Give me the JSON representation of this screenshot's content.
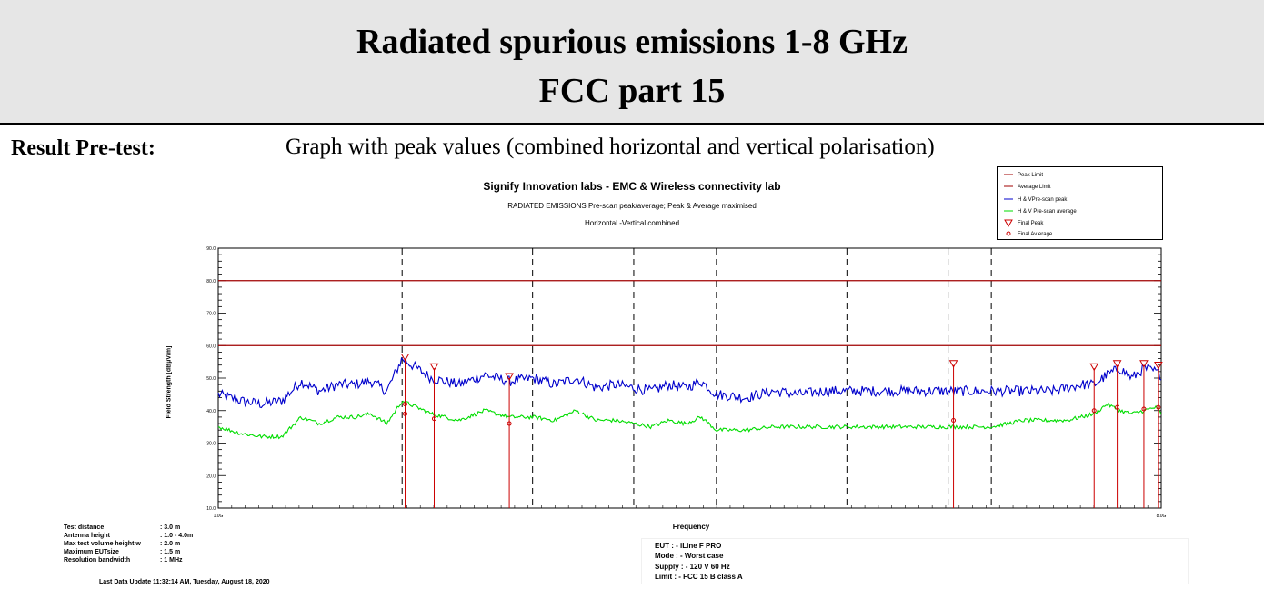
{
  "header": {
    "title_line1": "Radiated spurious emissions 1-8 GHz",
    "title_line2": "FCC part 15",
    "background": "#e6e6e6"
  },
  "result": {
    "label": "Result Pre-test:",
    "description": "Graph with peak values (combined horizontal and vertical polarisation)"
  },
  "chart_data": {
    "type": "line",
    "title": "Signify Innovation labs - EMC & Wireless connectivity lab",
    "subtitle": "RADIATED EMISSIONS Pre-scan peak/average; Peak & Average maximised",
    "subtitle2": "Horizontal -Vertical combined",
    "xlabel": "Frequency",
    "ylabel": "Field Strength [dBµV/m]",
    "x_scale": "log",
    "xlim_ghz": [
      1.0,
      8.0
    ],
    "x_tick_labels": [
      "1.0G",
      "8.0G"
    ],
    "ylim": [
      10,
      90
    ],
    "y_tick_labels": [
      "10.0",
      "20.0",
      "30.0",
      "40.0",
      "50.0",
      "60.0",
      "70.0",
      "80.0",
      "90.0"
    ],
    "dashed_gridlines_ghz": [
      1.5,
      2.0,
      2.5,
      3.0,
      4.0,
      5.0,
      5.5
    ],
    "limits": [
      {
        "name": "Peak Limit",
        "value": 80,
        "color": "#a00000"
      },
      {
        "name": "Average Limit",
        "value": 60,
        "color": "#a00000"
      }
    ],
    "series": [
      {
        "name": "H & V Pre-scan peak",
        "color": "#0000cc",
        "x_ghz": [
          1.0,
          1.05,
          1.1,
          1.15,
          1.2,
          1.25,
          1.3,
          1.35,
          1.4,
          1.45,
          1.5,
          1.55,
          1.6,
          1.7,
          1.8,
          1.9,
          2.0,
          2.1,
          2.2,
          2.3,
          2.4,
          2.5,
          2.6,
          2.7,
          2.8,
          2.9,
          3.0,
          3.2,
          3.4,
          3.6,
          3.8,
          4.0,
          4.3,
          4.6,
          4.9,
          5.2,
          5.5,
          5.7,
          5.9,
          6.1,
          6.3,
          6.5,
          6.7,
          6.9,
          7.1,
          7.3,
          7.5,
          7.7,
          7.9,
          8.0
        ],
        "y": [
          45,
          43,
          42,
          43,
          49,
          46,
          48,
          48,
          49,
          46,
          56,
          53,
          50,
          48,
          51,
          49,
          50,
          48,
          50,
          47,
          48,
          47,
          46,
          48,
          47,
          49,
          45,
          44,
          46,
          45,
          46,
          46,
          46,
          46,
          46,
          46,
          46,
          46,
          46,
          46,
          46,
          47,
          48,
          48,
          51,
          53,
          50,
          53,
          52,
          51
        ]
      },
      {
        "name": "H & V Pre-scan average",
        "color": "#00dd00",
        "x_ghz": [
          1.0,
          1.05,
          1.1,
          1.15,
          1.2,
          1.25,
          1.3,
          1.35,
          1.4,
          1.45,
          1.5,
          1.55,
          1.6,
          1.7,
          1.8,
          1.9,
          2.0,
          2.1,
          2.2,
          2.3,
          2.4,
          2.5,
          2.6,
          2.7,
          2.8,
          2.9,
          3.0,
          3.2,
          3.4,
          3.6,
          3.8,
          4.0,
          4.3,
          4.6,
          4.9,
          5.2,
          5.5,
          5.7,
          5.9,
          6.1,
          6.3,
          6.5,
          6.7,
          6.9,
          7.1,
          7.3,
          7.5,
          7.7,
          7.9,
          8.0
        ],
        "y": [
          35,
          33,
          32,
          32,
          38,
          36,
          38,
          38,
          39,
          36,
          43,
          41,
          39,
          37,
          40,
          38,
          38,
          37,
          40,
          37,
          37,
          36,
          35,
          37,
          36,
          38,
          34,
          34,
          35,
          35,
          35,
          35,
          35,
          35,
          35,
          35,
          35,
          36,
          37,
          37,
          37,
          37,
          38,
          39,
          42,
          40,
          39,
          40,
          41,
          39
        ]
      }
    ],
    "final_peaks": [
      {
        "f_ghz": 1.51,
        "value": 56
      },
      {
        "f_ghz": 1.61,
        "value": 53
      },
      {
        "f_ghz": 1.9,
        "value": 50
      },
      {
        "f_ghz": 5.06,
        "value": 54
      },
      {
        "f_ghz": 6.9,
        "value": 53
      },
      {
        "f_ghz": 7.26,
        "value": 54
      },
      {
        "f_ghz": 7.7,
        "value": 54
      },
      {
        "f_ghz": 7.95,
        "value": 53.5
      }
    ],
    "final_averages": [
      {
        "f_ghz": 1.51,
        "value": 42
      },
      {
        "f_ghz": 1.51,
        "value": 39
      },
      {
        "f_ghz": 1.61,
        "value": 37.5
      },
      {
        "f_ghz": 1.9,
        "value": 36
      },
      {
        "f_ghz": 5.06,
        "value": 37
      },
      {
        "f_ghz": 6.9,
        "value": 40
      },
      {
        "f_ghz": 7.26,
        "value": 41
      },
      {
        "f_ghz": 7.7,
        "value": 40.5
      },
      {
        "f_ghz": 7.95,
        "value": 41
      }
    ],
    "final_marker_color": "#cc0000",
    "legend": {
      "placement": "top-right",
      "entries": [
        "Peak Limit",
        "Average Limit",
        "H & VPre-scan peak",
        "H & V Pre-scan average",
        "Final Peak",
        "Final Av erage"
      ]
    }
  },
  "test_params": [
    {
      "key": "Test distance",
      "value": ": 3.0 m"
    },
    {
      "key": "Antenna height",
      "value": ": 1.0 - 4.0m"
    },
    {
      "key": "Max test volume height w",
      "value": ": 2.0 m"
    },
    {
      "key": "Maximum EUTsize",
      "value": ": 1.5 m"
    },
    {
      "key": "Resolution bandwidth",
      "value": ": 1 MHz"
    }
  ],
  "last_update": "Last Data Update 11:32:14 AM, Tuesday, August 18, 2020",
  "eut_info": [
    "EUT     : - iLine F PRO",
    "Mode    : - Worst case",
    "Supply : - 120 V 60 Hz",
    "Limit    : - FCC 15 B class A"
  ]
}
